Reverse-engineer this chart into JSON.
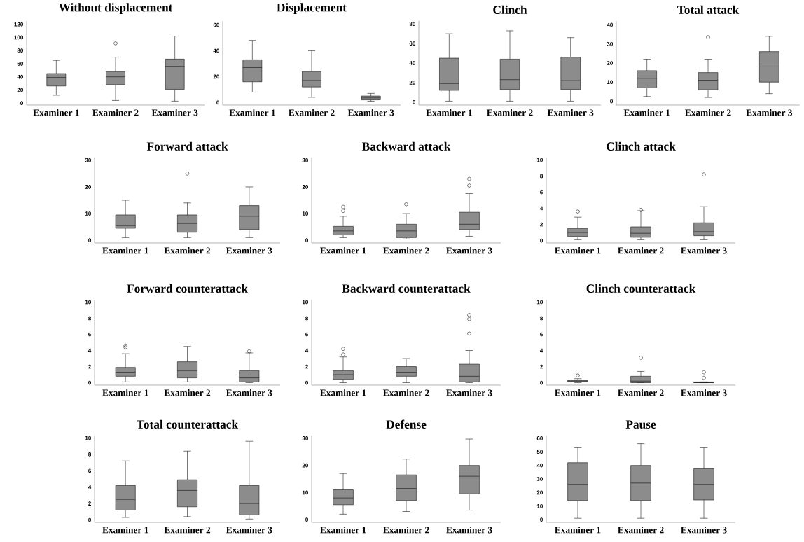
{
  "chart_data": [
    {
      "type": "box",
      "title": "Without displacement",
      "categories": [
        "Examiner 1",
        "Examiner 2",
        "Examiner 3"
      ],
      "color": "#8c8c8c",
      "ylim": [
        -3,
        125
      ],
      "yticks": [
        0,
        20,
        40,
        60,
        80,
        100,
        120
      ],
      "boxes": [
        {
          "low": 12,
          "q1": 26,
          "median": 39,
          "q3": 45,
          "high": 65
        },
        {
          "low": 4,
          "q1": 28,
          "median": 40,
          "q3": 48,
          "high": 70,
          "outliers": [
            91
          ]
        },
        {
          "low": 3,
          "q1": 21,
          "median": 56,
          "q3": 67,
          "high": 102
        }
      ]
    },
    {
      "type": "box",
      "title": "Displacement",
      "categories": [
        "Examiner 1",
        "Examiner 2",
        "Examiner 3"
      ],
      "color": "#8c8c8c",
      "ylim": [
        -2,
        63
      ],
      "yticks": [
        0,
        20,
        40,
        60
      ],
      "boxes": [
        {
          "low": 8,
          "q1": 16,
          "median": 27,
          "q3": 33,
          "high": 48
        },
        {
          "low": 4,
          "q1": 12,
          "median": 17,
          "q3": 24,
          "high": 40
        },
        {
          "low": 1,
          "q1": 2,
          "median": 3.5,
          "q3": 5,
          "high": 7
        }
      ]
    },
    {
      "type": "box",
      "title": "Clinch",
      "categories": [
        "Examiner 1",
        "Examiner 2",
        "Examiner 3"
      ],
      "color": "#8c8c8c",
      "ylim": [
        -3,
        83
      ],
      "yticks": [
        0,
        20,
        40,
        60,
        80
      ],
      "boxes": [
        {
          "low": 1,
          "q1": 12,
          "median": 19,
          "q3": 45,
          "high": 70
        },
        {
          "low": 1,
          "q1": 13,
          "median": 23,
          "q3": 44,
          "high": 73
        },
        {
          "low": 1,
          "q1": 13,
          "median": 22,
          "q3": 46,
          "high": 66
        }
      ]
    },
    {
      "type": "box",
      "title": "Total attack",
      "categories": [
        "Examiner 1",
        "Examiner 2",
        "Examiner 3"
      ],
      "color": "#8c8c8c",
      "ylim": [
        -2,
        42
      ],
      "yticks": [
        0,
        10,
        20,
        30,
        40
      ],
      "boxes": [
        {
          "low": 2.5,
          "q1": 7,
          "median": 12,
          "q3": 16,
          "high": 22
        },
        {
          "low": 2,
          "q1": 6,
          "median": 11,
          "q3": 15,
          "high": 22,
          "outliers": [
            33.5
          ]
        },
        {
          "low": 4,
          "q1": 10,
          "median": 18,
          "q3": 26,
          "high": 34
        }
      ]
    },
    {
      "type": "box",
      "title": "Forward attack",
      "categories": [
        "Examiner 1",
        "Examiner 2",
        "Examiner 3"
      ],
      "color": "#8c8c8c",
      "ylim": [
        -1,
        31
      ],
      "yticks": [
        0,
        10,
        20,
        30
      ],
      "boxes": [
        {
          "low": 1,
          "q1": 4.5,
          "median": 5.5,
          "q3": 9.5,
          "high": 15
        },
        {
          "low": 1,
          "q1": 3,
          "median": 6.3,
          "q3": 9.5,
          "high": 14,
          "outliers": [
            25
          ]
        },
        {
          "low": 1,
          "q1": 4,
          "median": 9,
          "q3": 13,
          "high": 20
        }
      ]
    },
    {
      "type": "box",
      "title": "Backward attack",
      "categories": [
        "Examiner 1",
        "Examiner 2",
        "Examiner 3"
      ],
      "color": "#8c8c8c",
      "ylim": [
        -1,
        31
      ],
      "yticks": [
        0,
        10,
        20,
        30
      ],
      "boxes": [
        {
          "low": 1,
          "q1": 2,
          "median": 3.5,
          "q3": 5.2,
          "high": 9,
          "outliers": [
            11,
            12.5
          ]
        },
        {
          "low": 0.5,
          "q1": 1,
          "median": 3.5,
          "q3": 6,
          "high": 10,
          "outliers": [
            13.5
          ]
        },
        {
          "low": 1.5,
          "q1": 4,
          "median": 6,
          "q3": 10.5,
          "high": 17.5,
          "outliers": [
            20.5,
            23
          ]
        }
      ]
    },
    {
      "type": "box",
      "title": "Clinch attack",
      "categories": [
        "Examiner 1",
        "Examiner 2",
        "Examiner 3"
      ],
      "color": "#8c8c8c",
      "ylim": [
        -0.3,
        10.3
      ],
      "yticks": [
        0,
        2,
        4,
        6,
        8,
        10
      ],
      "boxes": [
        {
          "low": 0.1,
          "q1": 0.5,
          "median": 1,
          "q3": 1.5,
          "high": 2.9,
          "outliers": [
            3.6
          ]
        },
        {
          "low": 0.1,
          "q1": 0.4,
          "median": 0.9,
          "q3": 1.7,
          "high": 3.7,
          "outliers": [
            3.8
          ]
        },
        {
          "low": 0.1,
          "q1": 0.6,
          "median": 1.1,
          "q3": 2.2,
          "high": 4.2,
          "outliers": [
            8.2
          ]
        }
      ]
    },
    {
      "type": "box",
      "title": "Forward counterattack",
      "categories": [
        "Examiner 1",
        "Examiner 2",
        "Examiner 3"
      ],
      "color": "#8c8c8c",
      "ylim": [
        -0.3,
        10.3
      ],
      "yticks": [
        0,
        2,
        4,
        6,
        8,
        10
      ],
      "boxes": [
        {
          "low": 0.1,
          "q1": 0.8,
          "median": 1.3,
          "q3": 1.9,
          "high": 3.6,
          "outliers": [
            4.4,
            4.6
          ]
        },
        {
          "low": 0.1,
          "q1": 0.6,
          "median": 1.5,
          "q3": 2.6,
          "high": 4.5
        },
        {
          "low": 0,
          "q1": 0.1,
          "median": 0.6,
          "q3": 1.5,
          "high": 3.7,
          "outliers": [
            3.9
          ]
        }
      ]
    },
    {
      "type": "box",
      "title": "Backward counterattack",
      "categories": [
        "Examiner 1",
        "Examiner 2",
        "Examiner 3"
      ],
      "color": "#8c8c8c",
      "ylim": [
        -0.3,
        10.3
      ],
      "yticks": [
        0,
        2,
        4,
        6,
        8,
        10
      ],
      "boxes": [
        {
          "low": 0,
          "q1": 0.4,
          "median": 1,
          "q3": 1.5,
          "high": 3.2,
          "outliers": [
            3.5,
            4.2
          ]
        },
        {
          "low": 0,
          "q1": 0.8,
          "median": 1.3,
          "q3": 2,
          "high": 3
        },
        {
          "low": 0,
          "q1": 0.1,
          "median": 0.8,
          "q3": 2.3,
          "high": 4,
          "outliers": [
            6.1,
            7.9,
            8.4
          ]
        }
      ]
    },
    {
      "type": "box",
      "title": "Clinch counterattack",
      "categories": [
        "Examiner 1",
        "Examiner 2",
        "Examiner 3"
      ],
      "color": "#8c8c8c",
      "ylim": [
        -0.3,
        10.3
      ],
      "yticks": [
        0,
        2,
        4,
        6,
        8,
        10
      ],
      "boxes": [
        {
          "low": 0,
          "q1": 0.1,
          "median": 0.2,
          "q3": 0.3,
          "high": 0.5,
          "outliers": [
            0.9
          ]
        },
        {
          "low": 0,
          "q1": 0,
          "median": 0.2,
          "q3": 0.8,
          "high": 1.4,
          "outliers": [
            3.1
          ]
        },
        {
          "low": 0,
          "q1": 0,
          "median": 0,
          "q3": 0.1,
          "high": 0.1,
          "outliers": [
            0.6,
            1.3
          ]
        }
      ]
    },
    {
      "type": "box",
      "title": "Total counterattack",
      "categories": [
        "Examiner 1",
        "Examiner 2",
        "Examiner 3"
      ],
      "color": "#8c8c8c",
      "ylim": [
        -0.3,
        10.3
      ],
      "yticks": [
        0,
        2,
        4,
        6,
        8,
        10
      ],
      "boxes": [
        {
          "low": 0.3,
          "q1": 1.2,
          "median": 2.5,
          "q3": 4.2,
          "high": 7.2
        },
        {
          "low": 0.4,
          "q1": 1.6,
          "median": 3.6,
          "q3": 4.9,
          "high": 8.4
        },
        {
          "low": 0.1,
          "q1": 0.6,
          "median": 2,
          "q3": 4.2,
          "high": 9.6
        }
      ]
    },
    {
      "type": "box",
      "title": "Defense",
      "categories": [
        "Examiner 1",
        "Examiner 2",
        "Examiner 3"
      ],
      "color": "#8c8c8c",
      "ylim": [
        -1,
        31
      ],
      "yticks": [
        0,
        10,
        20,
        30
      ],
      "boxes": [
        {
          "low": 2,
          "q1": 5.5,
          "median": 8,
          "q3": 11,
          "high": 17
        },
        {
          "low": 3,
          "q1": 7,
          "median": 11.5,
          "q3": 16.5,
          "high": 22.3
        },
        {
          "low": 3.5,
          "q1": 9.5,
          "median": 16,
          "q3": 20,
          "high": 29.7
        }
      ]
    },
    {
      "type": "box",
      "title": "Pause",
      "categories": [
        "Examiner 1",
        "Examiner 2",
        "Examiner 3"
      ],
      "color": "#8c8c8c",
      "ylim": [
        -2,
        62
      ],
      "yticks": [
        0,
        10,
        20,
        30,
        40,
        50,
        60
      ],
      "boxes": [
        {
          "low": 1,
          "q1": 14,
          "median": 26,
          "q3": 42,
          "high": 53
        },
        {
          "low": 1,
          "q1": 14,
          "median": 27,
          "q3": 40,
          "high": 56
        },
        {
          "low": 1,
          "q1": 14.5,
          "median": 26,
          "q3": 37.5,
          "high": 53
        }
      ]
    }
  ]
}
